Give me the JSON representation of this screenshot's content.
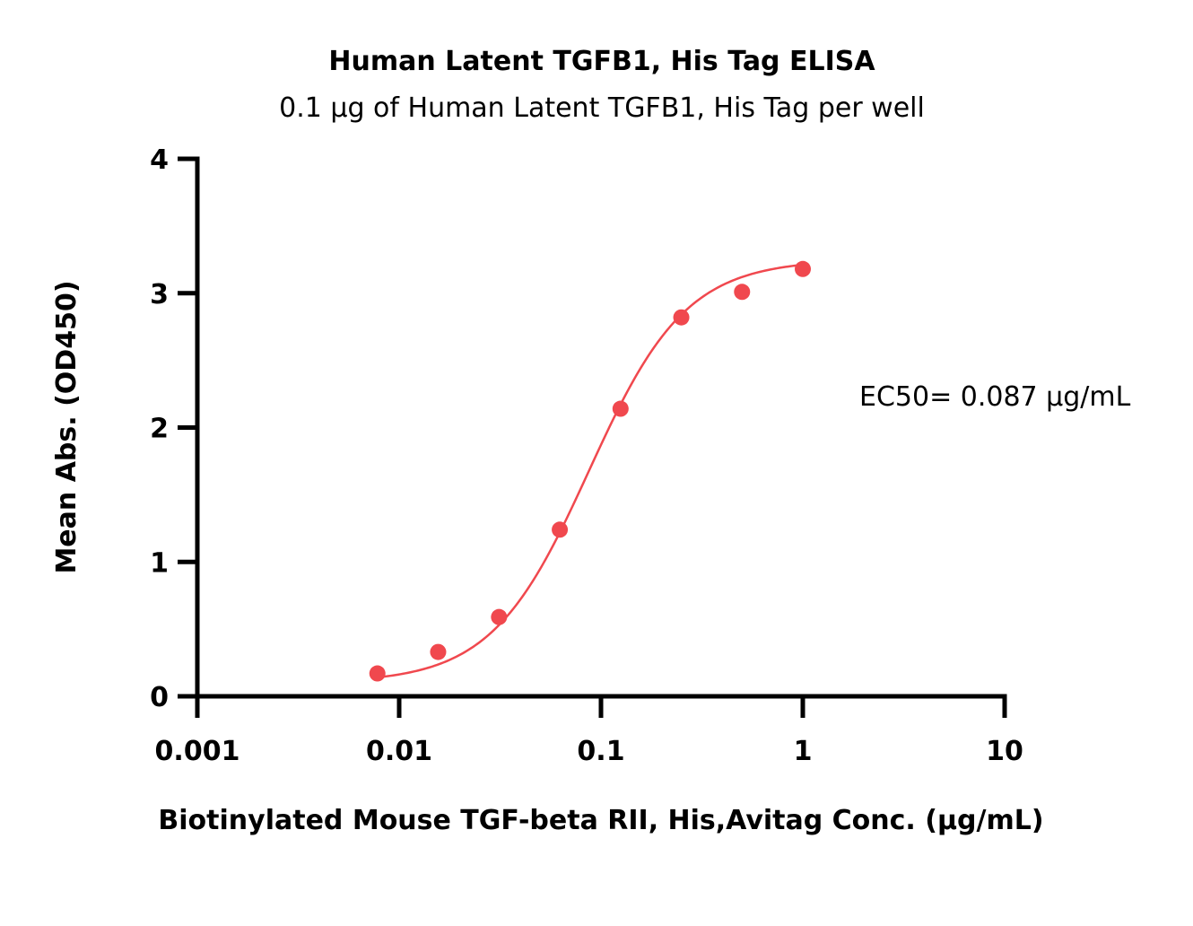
{
  "chart_data": {
    "type": "scatter",
    "title": "Human Latent TGFB1, His Tag ELISA",
    "subtitle": "0.1 μg of Human Latent TGFB1, His Tag per well",
    "xlabel": "Biotinylated Mouse TGF-beta RII, His,Avitag Conc. (μg/mL)",
    "ylabel": "Mean Abs. (OD450)",
    "x_scale": "log",
    "xlim": [
      0.001,
      10
    ],
    "ylim": [
      0,
      4
    ],
    "x_ticks": [
      0.001,
      0.01,
      0.1,
      1,
      10
    ],
    "x_tick_labels": [
      "0.001",
      "0.01",
      "0.1",
      "1",
      "10"
    ],
    "y_ticks": [
      0,
      1,
      2,
      3,
      4
    ],
    "y_tick_labels": [
      "0",
      "1",
      "2",
      "3",
      "4"
    ],
    "grid": false,
    "annotation": "EC50= 0.087 μg/mL",
    "series": [
      {
        "x": [
          0.0078,
          0.0156,
          0.03125,
          0.0625,
          0.125,
          0.25,
          0.5,
          1
        ],
        "y": [
          0.17,
          0.33,
          0.59,
          1.24,
          2.14,
          2.82,
          3.01,
          3.18
        ],
        "color": "#f0484e",
        "fit": {
          "model": "4PL",
          "bottom": 0.1,
          "top": 3.25,
          "ec50": 0.087,
          "hill": 1.8
        }
      }
    ]
  }
}
